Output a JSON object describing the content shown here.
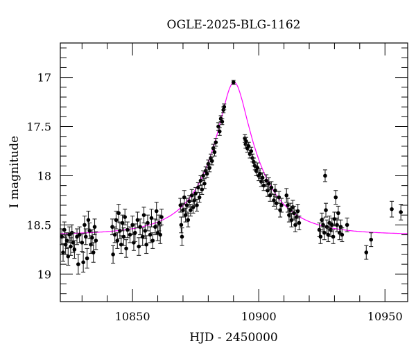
{
  "chart_data": {
    "type": "scatter",
    "title": "OGLE-2025-BLG-1162",
    "xlabel": "HJD - 2450000",
    "ylabel": "I magnitude",
    "xlim": [
      10821.4,
      10959
    ],
    "ylim": [
      19.28,
      16.65
    ],
    "y_inverted": true,
    "x_ticks": [
      10850,
      10900,
      10950
    ],
    "x_tick_labels": [
      "10850",
      "10900",
      "10950"
    ],
    "y_ticks": [
      17,
      17.5,
      18,
      18.5,
      19
    ],
    "y_tick_labels": [
      "17",
      "17.5",
      "18",
      "18.5",
      "19"
    ],
    "grid": false,
    "colors": {
      "points": "#000000",
      "model": "#ff00ff"
    },
    "model": {
      "type": "paczynski",
      "t0": 10890.2,
      "u0": 0.245,
      "tE": 20,
      "baseline_mag": 18.6
    },
    "points": [
      [
        10822,
        18.62,
        0.08
      ],
      [
        10822.5,
        18.78,
        0.09
      ],
      [
        10823,
        18.55,
        0.08
      ],
      [
        10823.5,
        18.7,
        0.1
      ],
      [
        10824,
        18.66,
        0.08
      ],
      [
        10824.5,
        18.82,
        0.09
      ],
      [
        10825,
        18.6,
        0.08
      ],
      [
        10825.5,
        18.72,
        0.09
      ],
      [
        10826,
        18.58,
        0.08
      ],
      [
        10826.5,
        18.68,
        0.1
      ],
      [
        10827,
        18.75,
        0.09
      ],
      [
        10828,
        18.62,
        0.08
      ],
      [
        10828.5,
        18.9,
        0.1
      ],
      [
        10829,
        18.6,
        0.08
      ],
      [
        10830,
        18.68,
        0.09
      ],
      [
        10830.5,
        18.88,
        0.1
      ],
      [
        10831,
        18.5,
        0.09
      ],
      [
        10831.5,
        18.62,
        0.08
      ],
      [
        10832,
        18.84,
        0.1
      ],
      [
        10832.5,
        18.45,
        0.09
      ],
      [
        10833,
        18.56,
        0.08
      ],
      [
        10833.5,
        18.7,
        0.09
      ],
      [
        10834,
        18.63,
        0.08
      ],
      [
        10834.5,
        18.78,
        0.1
      ],
      [
        10835,
        18.52,
        0.08
      ],
      [
        10835.5,
        18.66,
        0.09
      ],
      [
        10842,
        18.52,
        0.08
      ],
      [
        10842.3,
        18.8,
        0.09
      ],
      [
        10843,
        18.6,
        0.08
      ],
      [
        10843.5,
        18.45,
        0.09
      ],
      [
        10844,
        18.66,
        0.08
      ],
      [
        10844.5,
        18.38,
        0.09
      ],
      [
        10845,
        18.56,
        0.08
      ],
      [
        10845.5,
        18.7,
        0.09
      ],
      [
        10846,
        18.48,
        0.08
      ],
      [
        10846.5,
        18.62,
        0.09
      ],
      [
        10847,
        18.42,
        0.08
      ],
      [
        10847.5,
        18.74,
        0.09
      ],
      [
        10848,
        18.55,
        0.08
      ],
      [
        10849,
        18.6,
        0.08
      ],
      [
        10850,
        18.5,
        0.09
      ],
      [
        10850.5,
        18.68,
        0.08
      ],
      [
        10851,
        18.58,
        0.09
      ],
      [
        10852,
        18.45,
        0.08
      ],
      [
        10852.5,
        18.72,
        0.09
      ],
      [
        10853,
        18.52,
        0.08
      ],
      [
        10854,
        18.62,
        0.09
      ],
      [
        10854.5,
        18.4,
        0.08
      ],
      [
        10855,
        18.56,
        0.08
      ],
      [
        10855.5,
        18.7,
        0.09
      ],
      [
        10856,
        18.48,
        0.08
      ],
      [
        10857,
        18.6,
        0.08
      ],
      [
        10857.5,
        18.43,
        0.09
      ],
      [
        10858,
        18.66,
        0.08
      ],
      [
        10859,
        18.52,
        0.08
      ],
      [
        10859.5,
        18.36,
        0.09
      ],
      [
        10860,
        18.58,
        0.08
      ],
      [
        10860.5,
        18.48,
        0.08
      ],
      [
        10861,
        18.6,
        0.09
      ],
      [
        10861.5,
        18.42,
        0.08
      ],
      [
        10869,
        18.3,
        0.07
      ],
      [
        10869.3,
        18.5,
        0.08
      ],
      [
        10869.6,
        18.62,
        0.09
      ],
      [
        10870,
        18.35,
        0.07
      ],
      [
        10870.5,
        18.22,
        0.07
      ],
      [
        10871,
        18.4,
        0.07
      ],
      [
        10871.5,
        18.3,
        0.07
      ],
      [
        10872,
        18.45,
        0.07
      ],
      [
        10872.5,
        18.26,
        0.06
      ],
      [
        10873,
        18.35,
        0.06
      ],
      [
        10873.5,
        18.2,
        0.06
      ],
      [
        10874,
        18.32,
        0.06
      ],
      [
        10874.5,
        18.25,
        0.06
      ],
      [
        10875,
        18.18,
        0.06
      ],
      [
        10875.5,
        18.3,
        0.06
      ],
      [
        10876,
        18.12,
        0.05
      ],
      [
        10876.5,
        18.22,
        0.05
      ],
      [
        10877,
        18.05,
        0.05
      ],
      [
        10877.5,
        18.14,
        0.05
      ],
      [
        10878,
        18.0,
        0.05
      ],
      [
        10878.5,
        18.08,
        0.05
      ],
      [
        10879,
        17.95,
        0.04
      ],
      [
        10879.5,
        17.98,
        0.04
      ],
      [
        10880,
        17.88,
        0.04
      ],
      [
        10880.5,
        17.92,
        0.04
      ],
      [
        10881,
        17.82,
        0.04
      ],
      [
        10881.5,
        17.85,
        0.04
      ],
      [
        10882,
        17.72,
        0.04
      ],
      [
        10882.5,
        17.76,
        0.04
      ],
      [
        10883,
        17.66,
        0.04
      ],
      [
        10884,
        17.5,
        0.04
      ],
      [
        10884.5,
        17.55,
        0.04
      ],
      [
        10885,
        17.42,
        0.03
      ],
      [
        10885.5,
        17.45,
        0.03
      ],
      [
        10886,
        17.33,
        0.03
      ],
      [
        10886.3,
        17.3,
        0.03
      ],
      [
        10890,
        17.05,
        0.02
      ],
      [
        10894.5,
        17.62,
        0.04
      ],
      [
        10894.8,
        17.68,
        0.04
      ],
      [
        10895,
        17.65,
        0.04
      ],
      [
        10895.5,
        17.72,
        0.04
      ],
      [
        10896,
        17.7,
        0.04
      ],
      [
        10896.5,
        17.78,
        0.04
      ],
      [
        10897,
        17.75,
        0.04
      ],
      [
        10897.5,
        17.82,
        0.04
      ],
      [
        10898,
        17.86,
        0.04
      ],
      [
        10898.5,
        17.9,
        0.04
      ],
      [
        10899,
        17.95,
        0.05
      ],
      [
        10899.5,
        17.92,
        0.05
      ],
      [
        10900,
        18.0,
        0.05
      ],
      [
        10900.5,
        17.98,
        0.05
      ],
      [
        10901,
        18.06,
        0.05
      ],
      [
        10901.5,
        18.02,
        0.05
      ],
      [
        10902,
        18.1,
        0.05
      ],
      [
        10903,
        18.05,
        0.06
      ],
      [
        10903.5,
        18.15,
        0.06
      ],
      [
        10904,
        18.08,
        0.06
      ],
      [
        10904.5,
        18.2,
        0.06
      ],
      [
        10905,
        18.12,
        0.06
      ],
      [
        10906,
        18.25,
        0.06
      ],
      [
        10906.5,
        18.15,
        0.06
      ],
      [
        10907,
        18.28,
        0.06
      ],
      [
        10908,
        18.22,
        0.06
      ],
      [
        10908.5,
        18.35,
        0.07
      ],
      [
        10909,
        18.3,
        0.07
      ],
      [
        10911,
        18.2,
        0.07
      ],
      [
        10911.5,
        18.3,
        0.07
      ],
      [
        10912,
        18.4,
        0.07
      ],
      [
        10912.5,
        18.35,
        0.07
      ],
      [
        10913,
        18.45,
        0.07
      ],
      [
        10913.5,
        18.32,
        0.07
      ],
      [
        10914,
        18.38,
        0.07
      ],
      [
        10914.5,
        18.5,
        0.07
      ],
      [
        10915,
        18.42,
        0.07
      ],
      [
        10915.5,
        18.36,
        0.07
      ],
      [
        10916,
        18.48,
        0.07
      ],
      [
        10924,
        18.55,
        0.07
      ],
      [
        10924.5,
        18.62,
        0.07
      ],
      [
        10925,
        18.45,
        0.07
      ],
      [
        10925.5,
        18.5,
        0.07
      ],
      [
        10926,
        18.58,
        0.07
      ],
      [
        10926.3,
        18.0,
        0.06
      ],
      [
        10926.6,
        18.35,
        0.07
      ],
      [
        10927,
        18.52,
        0.07
      ],
      [
        10927.5,
        18.6,
        0.07
      ],
      [
        10928,
        18.48,
        0.07
      ],
      [
        10928.5,
        18.55,
        0.07
      ],
      [
        10929,
        18.5,
        0.07
      ],
      [
        10929.5,
        18.62,
        0.07
      ],
      [
        10930,
        18.44,
        0.07
      ],
      [
        10930.5,
        18.22,
        0.07
      ],
      [
        10931,
        18.5,
        0.07
      ],
      [
        10931.5,
        18.38,
        0.07
      ],
      [
        10932,
        18.58,
        0.07
      ],
      [
        10932.5,
        18.52,
        0.07
      ],
      [
        10933,
        18.6,
        0.07
      ],
      [
        10935,
        18.5,
        0.07
      ],
      [
        10942.6,
        18.78,
        0.07
      ],
      [
        10944.5,
        18.65,
        0.07
      ],
      [
        10952.7,
        18.34,
        0.08
      ],
      [
        10956.3,
        18.37,
        0.08
      ]
    ]
  }
}
